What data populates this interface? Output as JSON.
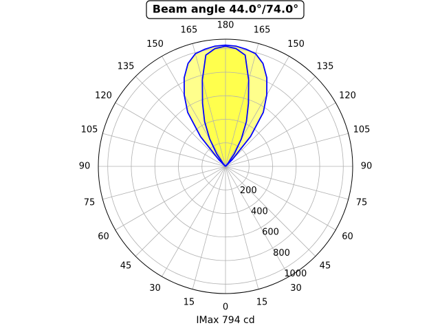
{
  "chart_data": {
    "type": "polar",
    "title": "Beam angle 44.0°/74.0°",
    "x_label": "IMax 794 cd",
    "theta": [
      130,
      135,
      140,
      145,
      150,
      155,
      160,
      165,
      170,
      175,
      180,
      185,
      190,
      195,
      200,
      205,
      210,
      215,
      220,
      225,
      230
    ],
    "series": [
      {
        "color": "#0000ff",
        "fill": "#ffff00",
        "values": [
          0,
          80,
          330,
          560,
          700,
          830,
          930,
          990,
          1010,
          1025,
          1030,
          1025,
          1010,
          990,
          930,
          830,
          700,
          560,
          330,
          80,
          0
        ]
      },
      {
        "color": "#0000ff",
        "fill": "#ffff00",
        "values": [
          0,
          0,
          30,
          130,
          270,
          420,
          570,
          760,
          960,
          1005,
          1020,
          1005,
          960,
          760,
          570,
          420,
          270,
          130,
          30,
          0,
          0
        ]
      }
    ],
    "rlim": [
      0,
      1080
    ],
    "rticks": [
      200,
      400,
      600,
      800,
      1000
    ],
    "thetaticks": [
      0,
      15,
      30,
      45,
      60,
      75,
      90,
      105,
      120,
      135,
      150,
      165,
      180,
      {
        "value": 195,
        "label": "165"
      },
      {
        "value": 210,
        "label": "150"
      },
      {
        "value": 225,
        "label": "135"
      },
      {
        "value": 240,
        "label": "120"
      },
      {
        "value": 255,
        "label": "105"
      },
      {
        "value": 270,
        "label": "90"
      },
      {
        "value": 285,
        "label": "75"
      },
      {
        "value": 300,
        "label": "60"
      },
      {
        "value": 315,
        "label": "45"
      },
      {
        "value": 330,
        "label": "30"
      },
      {
        "value": 345,
        "label": "15"
      }
    ],
    "grid": true
  }
}
